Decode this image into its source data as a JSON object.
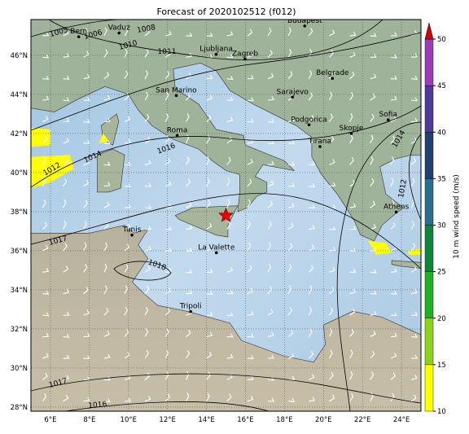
{
  "title": "Forecast of 2020102512 (f012)",
  "map": {
    "lon_ticks": [
      {
        "value": 6,
        "label": "6°E"
      },
      {
        "value": 8,
        "label": "8°E"
      },
      {
        "value": 10,
        "label": "10°E"
      },
      {
        "value": 12,
        "label": "12°E"
      },
      {
        "value": 14,
        "label": "14°E"
      },
      {
        "value": 16,
        "label": "16°E"
      },
      {
        "value": 18,
        "label": "18°E"
      },
      {
        "value": 20,
        "label": "20°E"
      },
      {
        "value": 22,
        "label": "22°E"
      },
      {
        "value": 24,
        "label": "24°E"
      }
    ],
    "lat_ticks": [
      {
        "value": 28,
        "label": "28°N"
      },
      {
        "value": 30,
        "label": "30°N"
      },
      {
        "value": 32,
        "label": "32°N"
      },
      {
        "value": 34,
        "label": "34°N"
      },
      {
        "value": 36,
        "label": "36°N"
      },
      {
        "value": 38,
        "label": "38°N"
      },
      {
        "value": 40,
        "label": "40°N"
      },
      {
        "value": 42,
        "label": "42°N"
      },
      {
        "value": 44,
        "label": "44°N"
      },
      {
        "value": 46,
        "label": "46°N"
      }
    ],
    "cities": [
      "Bern",
      "Vaduz",
      "Budapest",
      "Ljubljana",
      "Zagreb",
      "Belgrade",
      "San Marino",
      "Sarajevo",
      "Roma",
      "Podgorica",
      "Skopje",
      "Sofia",
      "Tirana",
      "Athens",
      "Tunis",
      "La Valette",
      "Tripoli"
    ],
    "isobar_labels": [
      "1005",
      "1006",
      "1008",
      "1010",
      "1011",
      "1012",
      "1014",
      "1016",
      "1014",
      "1012",
      "1017",
      "1018",
      "1017",
      "1016"
    ]
  },
  "colorbar": {
    "label": "10 m wind speed (m/s)",
    "ticks": [
      10,
      15,
      20,
      25,
      30,
      35,
      40,
      45,
      50
    ],
    "colors": [
      "#ffff00",
      "#8cd21c",
      "#22b022",
      "#10843a",
      "#2b6f8c",
      "#233f6e",
      "#4d3a99",
      "#9a3cb5"
    ],
    "extend_color": "#d40000"
  }
}
